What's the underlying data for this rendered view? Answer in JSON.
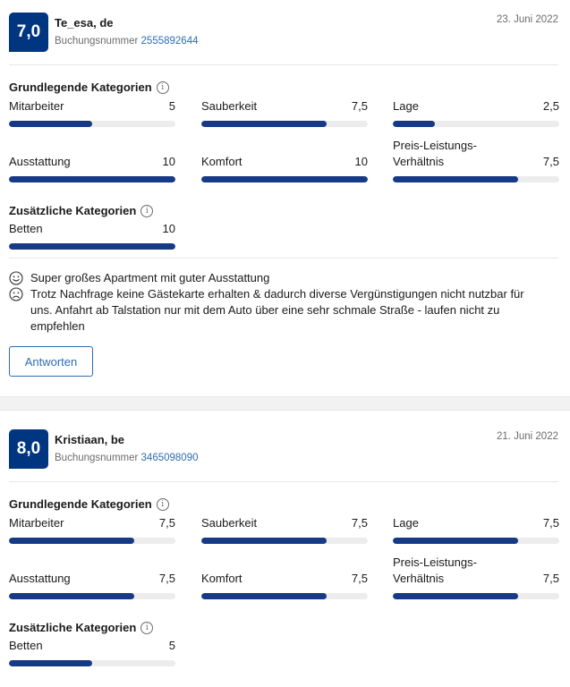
{
  "reviews": [
    {
      "score": "7,0",
      "reviewer": "Te_esa, de",
      "booking_label": "Buchungsnummer",
      "booking_number": "2555892644",
      "date": "23. Juni 2022",
      "basic_title": "Grundlegende Kategorien",
      "basic": [
        {
          "label": "Mitarbeiter",
          "value": "5",
          "fraction": 0.5
        },
        {
          "label": "Sauberkeit",
          "value": "7,5",
          "fraction": 0.75
        },
        {
          "label": "Lage",
          "value": "2,5",
          "fraction": 0.25
        },
        {
          "label": "Ausstattung",
          "value": "10",
          "fraction": 1.0
        },
        {
          "label": "Komfort",
          "value": "10",
          "fraction": 1.0
        },
        {
          "label": "Preis-Leistungs-Verhältnis",
          "value": "7,5",
          "fraction": 0.75
        }
      ],
      "extra_title": "Zusätzliche Kategorien",
      "extra": [
        {
          "label": "Betten",
          "value": "10",
          "fraction": 1.0
        }
      ],
      "positive": "Super großes Apartment mit guter Ausstattung",
      "negative": "Trotz Nachfrage keine Gästekarte erhalten & dadurch diverse Vergünstigungen nicht nutzbar für uns. Anfahrt ab Talstation nur mit dem Auto über eine sehr schmale Straße - laufen nicht zu empfehlen",
      "reply_label": "Antworten"
    },
    {
      "score": "8,0",
      "reviewer": "Kristiaan, be",
      "booking_label": "Buchungsnummer",
      "booking_number": "3465098090",
      "date": "21. Juni 2022",
      "basic_title": "Grundlegende Kategorien",
      "basic": [
        {
          "label": "Mitarbeiter",
          "value": "7,5",
          "fraction": 0.75
        },
        {
          "label": "Sauberkeit",
          "value": "7,5",
          "fraction": 0.75
        },
        {
          "label": "Lage",
          "value": "7,5",
          "fraction": 0.75
        },
        {
          "label": "Ausstattung",
          "value": "7,5",
          "fraction": 0.75
        },
        {
          "label": "Komfort",
          "value": "7,5",
          "fraction": 0.75
        },
        {
          "label": "Preis-Leistungs-Verhältnis",
          "value": "7,5",
          "fraction": 0.75
        }
      ],
      "extra_title": "Zusätzliche Kategorien",
      "extra": [
        {
          "label": "Betten",
          "value": "5",
          "fraction": 0.5
        }
      ]
    }
  ],
  "icons": {
    "info": "info-icon",
    "positive": "smiley-face-icon",
    "negative": "sad-face-icon"
  },
  "colors": {
    "score_badge": "#003580",
    "bar_fill": "#163a85",
    "bar_track": "#ececec",
    "link": "#2d6db3"
  }
}
